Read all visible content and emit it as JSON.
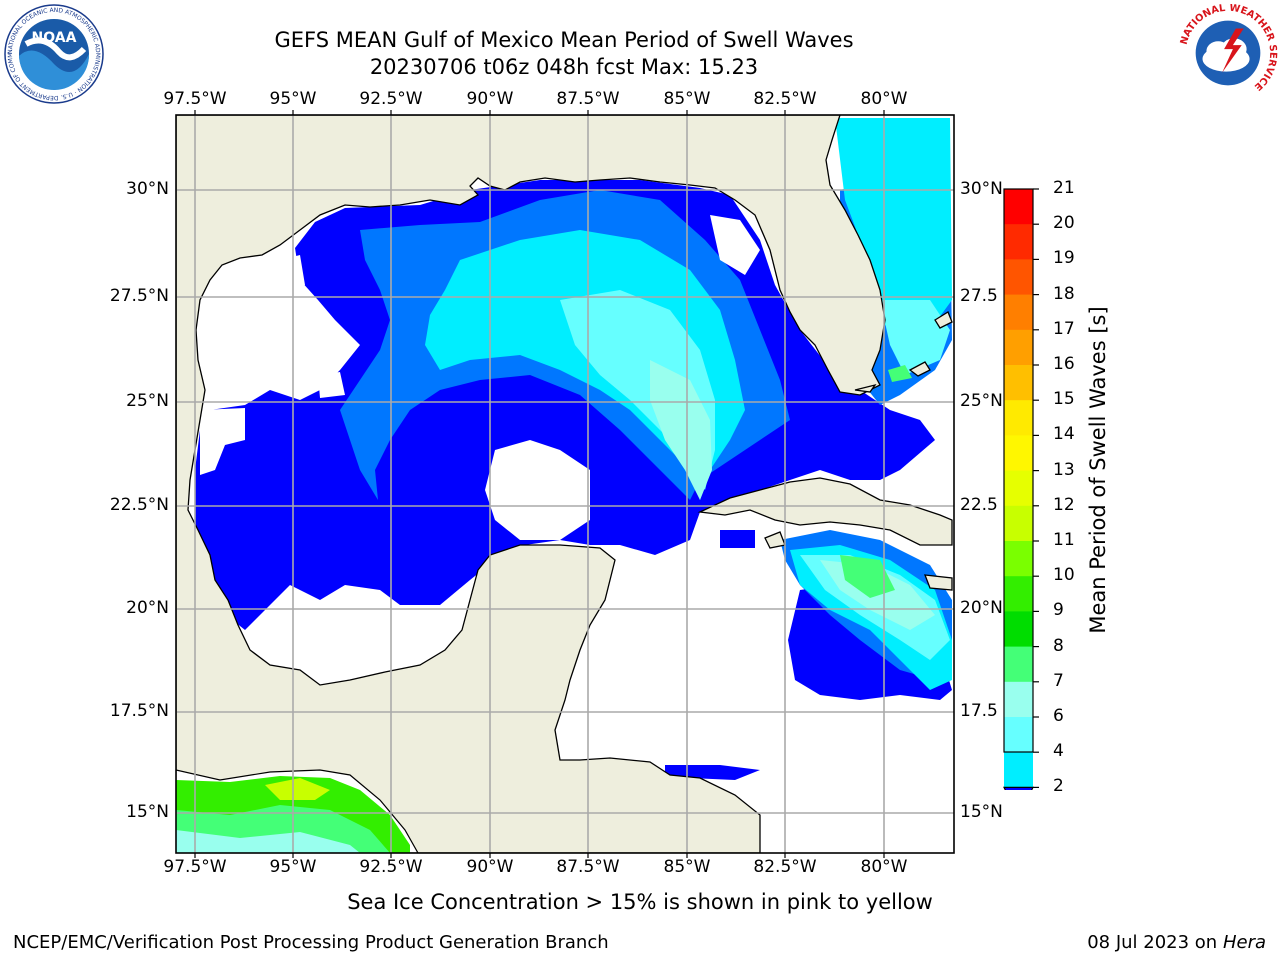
{
  "title": {
    "line1": "GEFS MEAN Gulf of Mexico Mean Period of Swell Waves",
    "line2": "20230706 t06z 048h fcst   Max: 15.23"
  },
  "logos": {
    "noaa_text": "NOAA",
    "noaa_ring_text": "NATIONAL OCEANIC AND ATMOSPHERIC ADMINISTRATION · U.S. DEPARTMENT OF COMMERCE",
    "nws_ring_text": "NATIONAL WEATHER SERVICE"
  },
  "axes": {
    "lon_labels": [
      "97.5°W",
      "95°W",
      "92.5°W",
      "90°W",
      "87.5°W",
      "85°W",
      "82.5°W",
      "80°W"
    ],
    "lat_labels_left": [
      "30°N",
      "27.5°N",
      "25°N",
      "22.5°N",
      "20°N",
      "17.5°N",
      "15°N"
    ],
    "lat_labels_right": [
      "30°N",
      "27.5",
      "25°N",
      "22.5",
      "20°N",
      "17.5",
      "15°N"
    ]
  },
  "colorbar": {
    "label": "Mean Period of Swell Waves [s]",
    "ticks": [
      "21",
      "20",
      "19",
      "18",
      "17",
      "16",
      "15",
      "14",
      "13",
      "12",
      "11",
      "10",
      "9",
      "8",
      "7",
      "6",
      "4",
      "2"
    ],
    "colors": [
      "#ff0000",
      "#ff2a00",
      "#ff5500",
      "#ff7f00",
      "#ff9f00",
      "#ffbf00",
      "#ffea00",
      "#fff700",
      "#e6ff00",
      "#c8ff00",
      "#7aff00",
      "#33ee00",
      "#00dd00",
      "#44ff77",
      "#99ffee",
      "#66ffff",
      "#00eeff",
      "#0077ff",
      "#0000ff"
    ]
  },
  "note": "Sea Ice Concentration > 15% is shown in pink to yellow",
  "footer": {
    "left": "NCEP/EMC/Verification Post Processing Product Generation Branch",
    "right_prefix": "08 Jul 2023 on ",
    "right_host": "Hera"
  }
}
